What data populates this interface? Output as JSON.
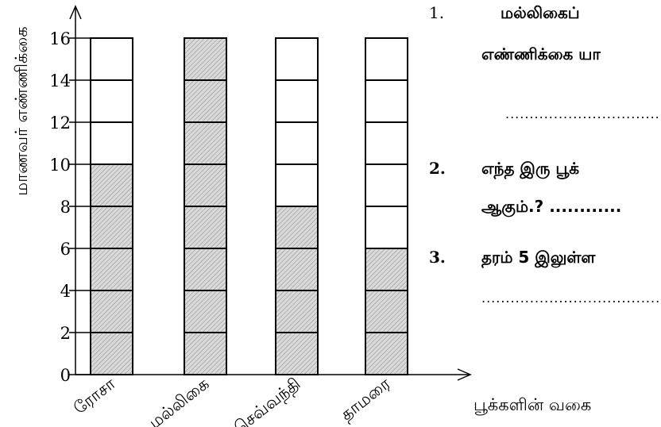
{
  "chart_data": {
    "type": "bar",
    "ylabel": "மாணவர் எண்ணிக்கை",
    "xlabel": "பூக்களின் வகை",
    "categories": [
      "ரோசா",
      "மல்லிகை",
      "செவ்வந்தி",
      "தாமரை"
    ],
    "values": [
      10,
      16,
      8,
      6
    ],
    "ylim": [
      0,
      16
    ],
    "yticks": [
      "0",
      "2",
      "4",
      "6",
      "8",
      "10",
      "12",
      "14",
      "16"
    ],
    "fill_color": "#d9d9d9",
    "empty_color": "#ffffff"
  },
  "questions": [
    {
      "number": "1.",
      "line1": "மல்லிகைப்",
      "line2": "எண்ணிக்கை யா",
      "dots": "......................................"
    },
    {
      "number": "2.",
      "line1": "எந்த இரு பூக்",
      "line2": "ஆகும்.? ............",
      "dots": ""
    },
    {
      "number": "3.",
      "line1": "தரம் 5 இலுள்ள",
      "line2": "",
      "dots": "......................................"
    }
  ]
}
